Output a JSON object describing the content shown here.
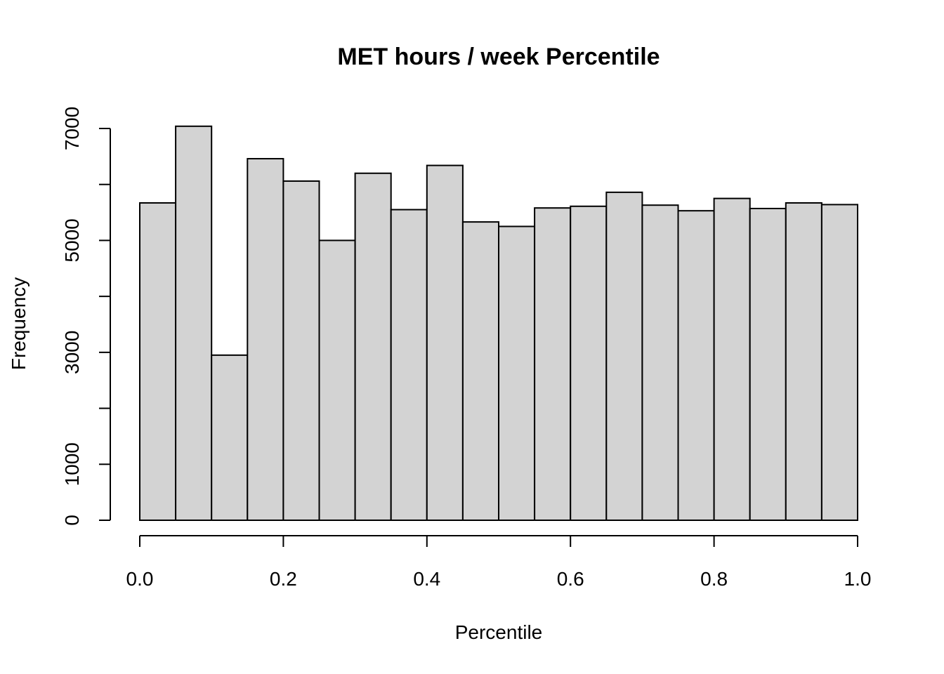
{
  "chart_data": {
    "type": "bar",
    "title": "MET hours / week Percentile",
    "xlabel": "Percentile",
    "ylabel": "Frequency",
    "bin_edges": [
      0.0,
      0.05,
      0.1,
      0.15,
      0.2,
      0.25,
      0.3,
      0.35,
      0.4,
      0.45,
      0.5,
      0.55,
      0.6,
      0.65,
      0.7,
      0.75,
      0.8,
      0.85,
      0.9,
      0.95,
      1.0
    ],
    "values": [
      5670,
      7040,
      2950,
      6460,
      6060,
      5000,
      6200,
      5550,
      6340,
      5330,
      5250,
      5580,
      5610,
      5860,
      5630,
      5530,
      5750,
      5570,
      5670,
      5640
    ],
    "xlim": [
      0,
      1
    ],
    "ylim": [
      0,
      7000
    ],
    "xticks": [
      0.0,
      0.2,
      0.4,
      0.6,
      0.8,
      1.0
    ],
    "xtick_labels": [
      "0.0",
      "0.2",
      "0.4",
      "0.6",
      "0.8",
      "1.0"
    ],
    "yticks": [
      0,
      1000,
      2000,
      3000,
      4000,
      5000,
      6000,
      7000
    ],
    "ytick_labels": [
      "0",
      "1000",
      "",
      "3000",
      "",
      "5000",
      "",
      "7000"
    ],
    "bar_color": "#d3d3d3",
    "grid": false,
    "legend": "none"
  }
}
